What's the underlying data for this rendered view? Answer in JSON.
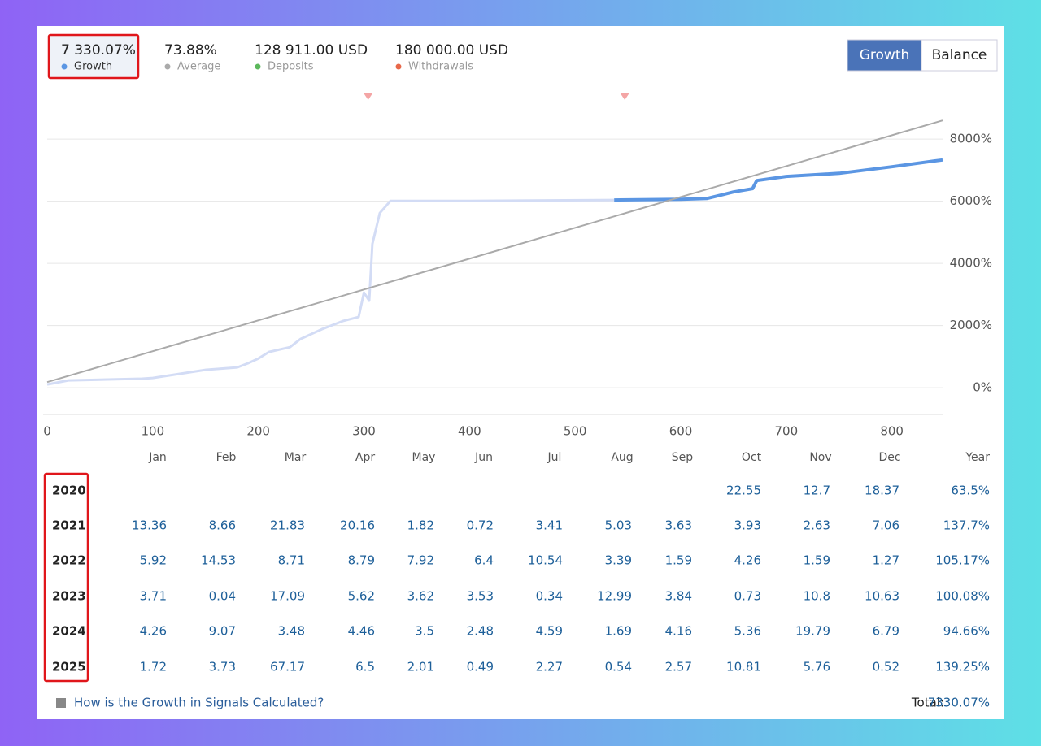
{
  "header": {
    "stats": [
      {
        "value": "7 330.07%",
        "label": "Growth",
        "dot": "#5b96e3",
        "selected": true
      },
      {
        "value": "73.88%",
        "label": "Average",
        "dot": "#aaaaaa"
      },
      {
        "value": "128 911.00 USD",
        "label": "Deposits",
        "dot": "#5cb85c"
      },
      {
        "value": "180 000.00 USD",
        "label": "Withdrawals",
        "dot": "#e8684a"
      }
    ],
    "buttons": [
      {
        "label": "Growth",
        "active": true
      },
      {
        "label": "Balance",
        "active": false
      }
    ]
  },
  "chart_data": {
    "type": "line",
    "xlim": [
      0,
      848
    ],
    "xticks": [
      0,
      100,
      200,
      300,
      400,
      500,
      600,
      700,
      800
    ],
    "ylim": [
      -860,
      9600
    ],
    "yticks": [
      {
        "value": 0,
        "label": "0%"
      },
      {
        "value": 2000,
        "label": "2000%"
      },
      {
        "value": 4000,
        "label": "4000%"
      },
      {
        "value": 6000,
        "label": "6000%"
      },
      {
        "value": 8000,
        "label": "8000%"
      }
    ],
    "grid": true,
    "withdrawals_x": [
      304,
      547
    ],
    "withdrawal_color": "#f4a5a5",
    "series": [
      {
        "name": "Growth",
        "color": "#5b96e3",
        "history_color": "#d3dcf5",
        "highlight_from": 537,
        "x": [
          0,
          20,
          50,
          90,
          100,
          150,
          180,
          190,
          200,
          210,
          230,
          240,
          260,
          280,
          295,
          300,
          305,
          308,
          315,
          325,
          400,
          537,
          600,
          625,
          650,
          668,
          672,
          700,
          750,
          800,
          840,
          848
        ],
        "values": [
          105,
          235,
          260,
          290,
          315,
          575,
          655,
          785,
          940,
          1150,
          1305,
          1570,
          1880,
          2145,
          2275,
          3060,
          2800,
          4630,
          5620,
          6010,
          6010,
          6040,
          6065,
          6090,
          6300,
          6405,
          6665,
          6800,
          6900,
          7110,
          7295,
          7330
        ]
      },
      {
        "name": "Average",
        "color": "#aaaaaa",
        "x": [
          0,
          848
        ],
        "values": [
          180,
          8600
        ]
      }
    ]
  },
  "table": {
    "columns": [
      "Jan",
      "Feb",
      "Mar",
      "Apr",
      "May",
      "Jun",
      "Jul",
      "Aug",
      "Sep",
      "Oct",
      "Nov",
      "Dec"
    ],
    "total_column": "Year",
    "rows": [
      {
        "year": "2020",
        "months": [
          null,
          null,
          null,
          null,
          null,
          null,
          null,
          null,
          null,
          "22.55",
          "12.7",
          "18.37"
        ],
        "total": "63.5%"
      },
      {
        "year": "2021",
        "months": [
          "13.36",
          "8.66",
          "21.83",
          "20.16",
          "1.82",
          "0.72",
          "3.41",
          "5.03",
          "3.63",
          "3.93",
          "2.63",
          "7.06"
        ],
        "total": "137.7%"
      },
      {
        "year": "2022",
        "months": [
          "5.92",
          "14.53",
          "8.71",
          "8.79",
          "7.92",
          "6.4",
          "10.54",
          "3.39",
          "1.59",
          "4.26",
          "1.59",
          "1.27"
        ],
        "total": "105.17%"
      },
      {
        "year": "2023",
        "months": [
          "3.71",
          "0.04",
          "17.09",
          "5.62",
          "3.62",
          "3.53",
          "0.34",
          "12.99",
          "3.84",
          "0.73",
          "10.8",
          "10.63"
        ],
        "total": "100.08%"
      },
      {
        "year": "2024",
        "months": [
          "4.26",
          "9.07",
          "3.48",
          "4.46",
          "3.5",
          "2.48",
          "4.59",
          "1.69",
          "4.16",
          "5.36",
          "19.79",
          "6.79"
        ],
        "total": "94.66%"
      },
      {
        "year": "2025",
        "months": [
          "1.72",
          "3.73",
          "67.17",
          "6.5",
          "2.01",
          "0.49",
          "2.27",
          "0.54",
          "2.57",
          "10.81",
          "5.76",
          "0.52"
        ],
        "total": "139.25%"
      }
    ]
  },
  "footer": {
    "link": "How is the Growth in Signals Calculated?",
    "total_label": "Total:",
    "total_value": "7330.07%"
  }
}
